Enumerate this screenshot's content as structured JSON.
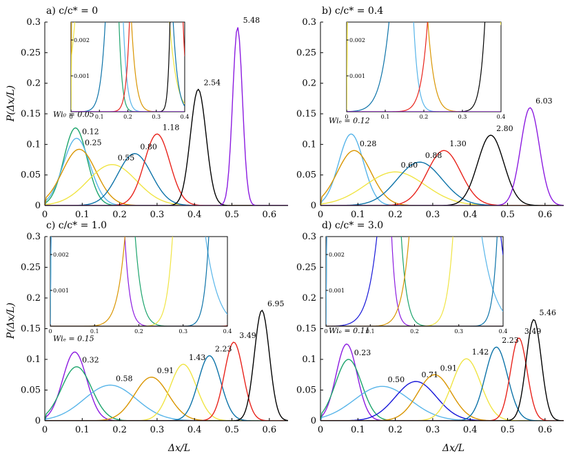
{
  "figure": {
    "xlabel": "Δx/L",
    "ylabel": "P(Δx/L)"
  },
  "colors": {
    "green": "#1aa36b",
    "lightblue": "#56b4e9",
    "orange": "#d99500",
    "yellow": "#f0e442",
    "teal": "#0b72a8",
    "red": "#e8221a",
    "black": "#000000",
    "purple": "#8b1ae0",
    "blue": "#1414d8"
  },
  "chart_data": [
    {
      "type": "line",
      "title": "a) c/c* = 0",
      "xlim": [
        0,
        0.65
      ],
      "ylim": [
        0,
        0.3
      ],
      "xticks": [
        "0",
        "0.1",
        "0.2",
        "0.3",
        "0.4",
        "0.5",
        "0.6"
      ],
      "yticks": [
        "0",
        "0.05",
        "0.1",
        "0.15",
        "0.2",
        "0.25",
        "0.3"
      ],
      "legend_title": "Wi₀ = 0.05",
      "series": [
        {
          "label": "0.05",
          "color": "green",
          "mu": 0.082,
          "sigma": 0.031,
          "peak": 0.127
        },
        {
          "label": "0.12",
          "color": "lightblue",
          "mu": 0.085,
          "sigma": 0.036,
          "peak": 0.11
        },
        {
          "label": "0.25",
          "color": "orange",
          "mu": 0.092,
          "sigma": 0.045,
          "peak": 0.092
        },
        {
          "label": "0.55",
          "color": "yellow",
          "mu": 0.18,
          "sigma": 0.065,
          "peak": 0.067
        },
        {
          "label": "0.80",
          "color": "teal",
          "mu": 0.24,
          "sigma": 0.045,
          "peak": 0.085
        },
        {
          "label": "1.18",
          "color": "red",
          "mu": 0.3,
          "sigma": 0.034,
          "peak": 0.117
        },
        {
          "label": "2.54",
          "color": "black",
          "mu": 0.41,
          "sigma": 0.021,
          "peak": 0.19
        },
        {
          "label": "5.48",
          "color": "purple",
          "mu": 0.515,
          "sigma": 0.013,
          "peak": 0.292
        }
      ],
      "inset": {
        "xlim": [
          0,
          0.4
        ],
        "ylim": [
          0,
          0.0025
        ],
        "xticks": [
          "0",
          "0.1",
          "0.2",
          "0.3",
          "0.4"
        ],
        "yticks": [
          "0.001",
          "0.002"
        ]
      }
    },
    {
      "type": "line",
      "title": "b) c/c* = 0.4",
      "xlim": [
        0,
        0.65
      ],
      "ylim": [
        0,
        0.3
      ],
      "xticks": [
        "0",
        "0.1",
        "0.2",
        "0.3",
        "0.4",
        "0.5",
        "0.6"
      ],
      "yticks": [
        "0",
        "0.05",
        "0.1",
        "0.15",
        "0.2",
        "0.25",
        "0.3"
      ],
      "legend_title": "Wiₑ = 0.12",
      "series": [
        {
          "label": "0.12",
          "color": "lightblue",
          "mu": 0.082,
          "sigma": 0.033,
          "peak": 0.117
        },
        {
          "label": "0.28",
          "color": "orange",
          "mu": 0.09,
          "sigma": 0.045,
          "peak": 0.09
        },
        {
          "label": "0.60",
          "color": "yellow",
          "mu": 0.2,
          "sigma": 0.08,
          "peak": 0.055
        },
        {
          "label": "0.88",
          "color": "teal",
          "mu": 0.265,
          "sigma": 0.06,
          "peak": 0.071
        },
        {
          "label": "1.30",
          "color": "red",
          "mu": 0.33,
          "sigma": 0.045,
          "peak": 0.09
        },
        {
          "label": "2.80",
          "color": "black",
          "mu": 0.455,
          "sigma": 0.035,
          "peak": 0.115
        },
        {
          "label": "6.03",
          "color": "purple",
          "mu": 0.56,
          "sigma": 0.025,
          "peak": 0.16
        }
      ],
      "inset": {
        "xlim": [
          0,
          0.4
        ],
        "ylim": [
          0,
          0.0025
        ],
        "xticks": [
          "0",
          "0.1",
          "0.2",
          "0.3",
          "0.4"
        ],
        "yticks": [
          "0.001",
          "0.002"
        ]
      }
    },
    {
      "type": "line",
      "title": "c) c/c* = 1.0",
      "xlim": [
        0,
        0.65
      ],
      "ylim": [
        0,
        0.3
      ],
      "xticks": [
        "0",
        "0.1",
        "0.2",
        "0.3",
        "0.4",
        "0.5",
        "0.6"
      ],
      "yticks": [
        "0",
        "0.05",
        "0.1",
        "0.15",
        "0.2",
        "0.25",
        "0.3"
      ],
      "legend_title": "Wiₑ = 0.15",
      "series": [
        {
          "label": "0.15",
          "color": "purple",
          "mu": 0.08,
          "sigma": 0.032,
          "peak": 0.112
        },
        {
          "label": "0.32",
          "color": "green",
          "mu": 0.085,
          "sigma": 0.04,
          "peak": 0.088
        },
        {
          "label": "0.58",
          "color": "lightblue",
          "mu": 0.175,
          "sigma": 0.07,
          "peak": 0.058
        },
        {
          "label": "0.91",
          "color": "orange",
          "mu": 0.285,
          "sigma": 0.045,
          "peak": 0.071
        },
        {
          "label": "1.43",
          "color": "yellow",
          "mu": 0.37,
          "sigma": 0.035,
          "peak": 0.092
        },
        {
          "label": "2.23",
          "color": "teal",
          "mu": 0.44,
          "sigma": 0.03,
          "peak": 0.106
        },
        {
          "label": "3.49",
          "color": "red",
          "mu": 0.505,
          "sigma": 0.025,
          "peak": 0.128
        },
        {
          "label": "6.95",
          "color": "black",
          "mu": 0.58,
          "sigma": 0.02,
          "peak": 0.18
        }
      ],
      "inset": {
        "xlim": [
          0,
          0.4
        ],
        "ylim": [
          0,
          0.0025
        ],
        "xticks": [
          "0",
          "0.1",
          "0.2",
          "0.3",
          "0.4"
        ],
        "yticks": [
          "0.001",
          "0.002"
        ]
      }
    },
    {
      "type": "line",
      "title": "d) c/c* = 3.0",
      "xlim": [
        0,
        0.65
      ],
      "ylim": [
        0,
        0.3
      ],
      "xticks": [
        "0",
        "0.1",
        "0.2",
        "0.3",
        "0.4",
        "0.5",
        "0.6"
      ],
      "yticks": [
        "0",
        "0.05",
        "0.1",
        "0.15",
        "0.2",
        "0.25",
        "0.3"
      ],
      "legend_title": "Wiₑ = 0.11",
      "series": [
        {
          "label": "0.11",
          "color": "purple",
          "mu": 0.07,
          "sigma": 0.028,
          "peak": 0.125
        },
        {
          "label": "0.23",
          "color": "green",
          "mu": 0.075,
          "sigma": 0.035,
          "peak": 0.1
        },
        {
          "label": "0.50",
          "color": "lightblue",
          "mu": 0.165,
          "sigma": 0.075,
          "peak": 0.056
        },
        {
          "label": "0.71",
          "color": "blue",
          "mu": 0.255,
          "sigma": 0.055,
          "peak": 0.064
        },
        {
          "label": "0.91",
          "color": "orange",
          "mu": 0.305,
          "sigma": 0.045,
          "peak": 0.075
        },
        {
          "label": "1.42",
          "color": "yellow",
          "mu": 0.39,
          "sigma": 0.038,
          "peak": 0.101
        },
        {
          "label": "2.23",
          "color": "teal",
          "mu": 0.47,
          "sigma": 0.03,
          "peak": 0.12
        },
        {
          "label": "3.49",
          "color": "red",
          "mu": 0.53,
          "sigma": 0.022,
          "peak": 0.135
        },
        {
          "label": "5.46",
          "color": "black",
          "mu": 0.57,
          "sigma": 0.02,
          "peak": 0.165
        }
      ],
      "inset": {
        "xlim": [
          0,
          0.4
        ],
        "ylim": [
          0,
          0.0025
        ],
        "xticks": [
          "0",
          "0.1",
          "0.2",
          "0.3",
          "0.4"
        ],
        "yticks": [
          "0.001",
          "0.002"
        ]
      }
    }
  ]
}
